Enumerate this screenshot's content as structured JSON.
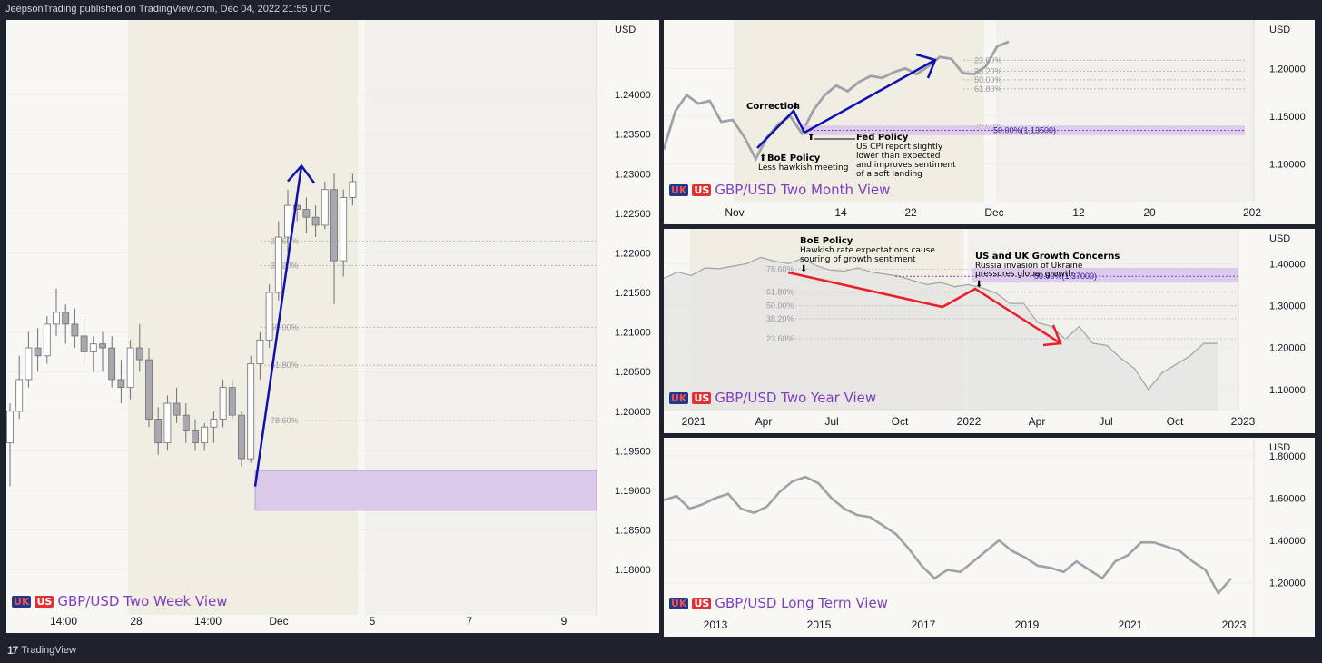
{
  "header": {
    "publisher_line": "JeepsonTrading published on TradingView.com, Dec 04, 2022 21:55 UTC"
  },
  "footer": {
    "brand": "TradingView",
    "logo_glyph": "17"
  },
  "colors": {
    "accent_purple": "#7e3fbf",
    "arrow_blue": "#1010b0",
    "arrow_red": "#e8202a",
    "line_gray": "#a0a0a8",
    "zone": "#d8c3ea"
  },
  "flags": {
    "uk": "UK",
    "us": "US"
  },
  "chart_data": [
    {
      "id": "two_week",
      "type": "candlestick",
      "title": "GBP/USD Two Week View",
      "currency": "USD",
      "ylim": [
        1.176,
        1.2485
      ],
      "yticks": [
        "1.24000",
        "1.23500",
        "1.23000",
        "1.22500",
        "1.22000",
        "1.21500",
        "1.21000",
        "1.20500",
        "1.20000",
        "1.19500",
        "1.19000",
        "1.18500",
        "1.18000"
      ],
      "xticks": [
        "14:00",
        "28",
        "14:00",
        "Dec",
        "5",
        "7",
        "9"
      ],
      "fib_labels": [
        "23.60%",
        "38.20%",
        "50.00%",
        "61.80%",
        "78.60%"
      ],
      "fib_levels": [
        1.2215,
        1.2184,
        1.2106,
        1.2058,
        1.1988
      ],
      "zone": [
        1.1875,
        1.1925
      ],
      "arrow": [
        [
          1.1905
        ],
        [
          1.231
        ]
      ],
      "candles": [
        [
          1.196,
          1.201,
          1.1905,
          1.2
        ],
        [
          1.2,
          1.207,
          1.199,
          1.204
        ],
        [
          1.204,
          1.21,
          1.203,
          1.208
        ],
        [
          1.208,
          1.2105,
          1.205,
          1.207
        ],
        [
          1.207,
          1.212,
          1.206,
          1.211
        ],
        [
          1.211,
          1.2155,
          1.2095,
          1.2125
        ],
        [
          1.2125,
          1.2135,
          1.2085,
          1.211
        ],
        [
          1.211,
          1.213,
          1.208,
          1.2095
        ],
        [
          1.2095,
          1.212,
          1.206,
          1.2075
        ],
        [
          1.2075,
          1.2095,
          1.205,
          1.2085
        ],
        [
          1.2085,
          1.21,
          1.205,
          1.208
        ],
        [
          1.208,
          1.2095,
          1.203,
          1.204
        ],
        [
          1.204,
          1.2065,
          1.201,
          1.203
        ],
        [
          1.203,
          1.209,
          1.2015,
          1.208
        ],
        [
          1.208,
          1.211,
          1.205,
          1.2065
        ],
        [
          1.2065,
          1.208,
          1.198,
          1.199
        ],
        [
          1.199,
          1.2005,
          1.1945,
          1.196
        ],
        [
          1.196,
          1.202,
          1.195,
          1.201
        ],
        [
          1.201,
          1.203,
          1.1985,
          1.1995
        ],
        [
          1.1995,
          1.201,
          1.196,
          1.1975
        ],
        [
          1.1975,
          1.199,
          1.195,
          1.196
        ],
        [
          1.196,
          1.1985,
          1.195,
          1.198
        ],
        [
          1.198,
          1.2,
          1.196,
          1.199
        ],
        [
          1.199,
          1.204,
          1.198,
          1.203
        ],
        [
          1.203,
          1.204,
          1.199,
          1.1995
        ],
        [
          1.1995,
          1.2,
          1.193,
          1.194
        ],
        [
          1.194,
          1.207,
          1.1935,
          1.206
        ],
        [
          1.206,
          1.21,
          1.204,
          1.209
        ],
        [
          1.209,
          1.216,
          1.208,
          1.215
        ],
        [
          1.215,
          1.224,
          1.214,
          1.222
        ],
        [
          1.222,
          1.228,
          1.22,
          1.226
        ],
        [
          1.226,
          1.2275,
          1.224,
          1.2255
        ],
        [
          1.2255,
          1.227,
          1.2225,
          1.2245
        ],
        [
          1.2245,
          1.226,
          1.222,
          1.2235
        ],
        [
          1.2235,
          1.229,
          1.223,
          1.228
        ],
        [
          1.228,
          1.23,
          1.2135,
          1.219
        ],
        [
          1.219,
          1.228,
          1.217,
          1.227
        ],
        [
          1.227,
          1.23,
          1.226,
          1.229
        ]
      ]
    },
    {
      "id": "two_month",
      "type": "line",
      "title": "GBP/USD Two Month View",
      "currency": "USD",
      "ylim": [
        1.065,
        1.245
      ],
      "yticks": [
        "1.20000",
        "1.15000",
        "1.10000"
      ],
      "xticks": [
        "Nov",
        "14",
        "22",
        "Dec",
        "12",
        "20",
        "202"
      ],
      "fib_labels": [
        "23.60%",
        "38.20%",
        "50.00%",
        "61.80%",
        "78.60%"
      ],
      "fib_levels": [
        1.2085,
        1.197,
        1.188,
        1.1785,
        1.139
      ],
      "zone_label": "50.00%(1.13500)",
      "zone": [
        1.13,
        1.14
      ],
      "values": [
        1.115,
        1.155,
        1.172,
        1.163,
        1.166,
        1.144,
        1.146,
        1.128,
        1.105,
        1.128,
        1.142,
        1.15,
        1.132,
        1.156,
        1.172,
        1.182,
        1.176,
        1.186,
        1.192,
        1.19,
        1.196,
        1.2,
        1.194,
        1.202,
        1.212,
        1.21,
        1.195,
        1.194,
        1.202,
        1.223,
        1.228
      ],
      "annotations": [
        {
          "title": "Correction",
          "marker": "⬇"
        },
        {
          "title": "BoE Policy",
          "marker": "⬆",
          "text": [
            "Less hawkish meeting"
          ]
        },
        {
          "title": "Fed Policy",
          "marker": "⬆",
          "text": [
            "US CPI report slightly",
            "lower than expected",
            "and improves sentiment",
            "of a soft landing"
          ]
        }
      ]
    },
    {
      "id": "two_year",
      "type": "area",
      "title": "GBP/USD Two Year View",
      "currency": "USD",
      "ylim": [
        1.05,
        1.47
      ],
      "yticks": [
        "1.40000",
        "1.30000",
        "1.20000",
        "1.10000"
      ],
      "xticks": [
        "2021",
        "Apr",
        "Jul",
        "Oct",
        "2022",
        "Apr",
        "Jul",
        "Oct",
        "2023"
      ],
      "fib_labels": [
        "78.60%",
        "61.80%",
        "50.00%",
        "38.20%",
        "23.60%"
      ],
      "fib_levels": [
        1.387,
        1.332,
        1.3,
        1.269,
        1.221
      ],
      "zone_label": "50.00%(1.37000)",
      "zone": [
        1.355,
        1.39
      ],
      "values": [
        1.365,
        1.38,
        1.372,
        1.39,
        1.388,
        1.394,
        1.4,
        1.415,
        1.406,
        1.4,
        1.412,
        1.395,
        1.385,
        1.382,
        1.39,
        1.38,
        1.375,
        1.37,
        1.36,
        1.35,
        1.355,
        1.345,
        1.35,
        1.342,
        1.33,
        1.305,
        1.305,
        1.26,
        1.25,
        1.22,
        1.25,
        1.21,
        1.205,
        1.175,
        1.15,
        1.1,
        1.14,
        1.16,
        1.18,
        1.21,
        1.21
      ],
      "annotations": [
        {
          "title": "BoE Policy",
          "marker": "⬇",
          "text": [
            "Hawkish rate expectations cause",
            "souring of growth sentiment"
          ]
        },
        {
          "title": "US and UK Growth Concerns",
          "marker": "⬇",
          "text": [
            "Russia invasion of Ukraine",
            "pressures global growth"
          ]
        }
      ]
    },
    {
      "id": "long_term",
      "type": "line",
      "title": "GBP/USD Long Term View",
      "currency": "USD",
      "ylim": [
        1.06,
        1.86
      ],
      "yticks": [
        "1.80000",
        "1.60000",
        "1.40000",
        "1.20000"
      ],
      "xticks": [
        "2013",
        "2015",
        "2017",
        "2019",
        "2021",
        "2023"
      ],
      "values": [
        1.59,
        1.61,
        1.55,
        1.57,
        1.6,
        1.62,
        1.55,
        1.53,
        1.56,
        1.63,
        1.68,
        1.7,
        1.67,
        1.6,
        1.55,
        1.52,
        1.51,
        1.47,
        1.43,
        1.36,
        1.28,
        1.22,
        1.26,
        1.25,
        1.3,
        1.35,
        1.4,
        1.35,
        1.32,
        1.28,
        1.27,
        1.25,
        1.3,
        1.26,
        1.22,
        1.3,
        1.33,
        1.39,
        1.39,
        1.37,
        1.35,
        1.3,
        1.26,
        1.15,
        1.22
      ]
    }
  ]
}
